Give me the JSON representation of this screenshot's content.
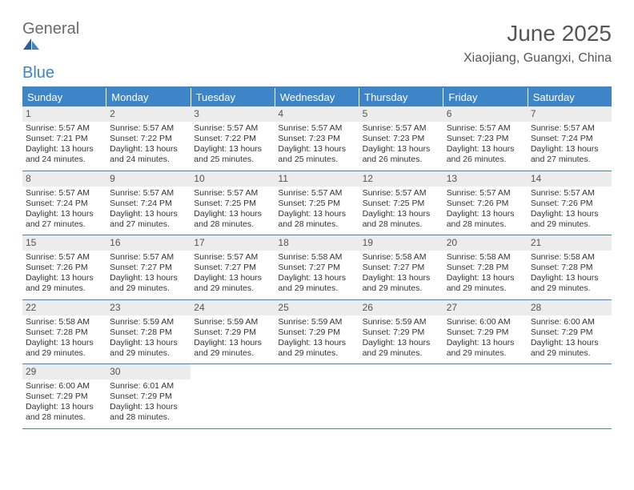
{
  "logo": {
    "part1": "General",
    "part2": "Blue"
  },
  "title": "June 2025",
  "location": "Xiaojiang, Guangxi, China",
  "colors": {
    "accent": "#3d85c6",
    "header_text": "#ffffff",
    "daynum_bg": "#ececec",
    "text": "#333333",
    "muted": "#555555"
  },
  "typography": {
    "title_fontsize": 28,
    "location_fontsize": 16,
    "header_fontsize": 13,
    "daynum_fontsize": 12,
    "body_fontsize": 10.5
  },
  "weekday_labels": [
    "Sunday",
    "Monday",
    "Tuesday",
    "Wednesday",
    "Thursday",
    "Friday",
    "Saturday"
  ],
  "days": [
    {
      "n": "1",
      "sunrise": "Sunrise: 5:57 AM",
      "sunset": "Sunset: 7:21 PM",
      "daylight": "Daylight: 13 hours and 24 minutes."
    },
    {
      "n": "2",
      "sunrise": "Sunrise: 5:57 AM",
      "sunset": "Sunset: 7:22 PM",
      "daylight": "Daylight: 13 hours and 24 minutes."
    },
    {
      "n": "3",
      "sunrise": "Sunrise: 5:57 AM",
      "sunset": "Sunset: 7:22 PM",
      "daylight": "Daylight: 13 hours and 25 minutes."
    },
    {
      "n": "4",
      "sunrise": "Sunrise: 5:57 AM",
      "sunset": "Sunset: 7:23 PM",
      "daylight": "Daylight: 13 hours and 25 minutes."
    },
    {
      "n": "5",
      "sunrise": "Sunrise: 5:57 AM",
      "sunset": "Sunset: 7:23 PM",
      "daylight": "Daylight: 13 hours and 26 minutes."
    },
    {
      "n": "6",
      "sunrise": "Sunrise: 5:57 AM",
      "sunset": "Sunset: 7:23 PM",
      "daylight": "Daylight: 13 hours and 26 minutes."
    },
    {
      "n": "7",
      "sunrise": "Sunrise: 5:57 AM",
      "sunset": "Sunset: 7:24 PM",
      "daylight": "Daylight: 13 hours and 27 minutes."
    },
    {
      "n": "8",
      "sunrise": "Sunrise: 5:57 AM",
      "sunset": "Sunset: 7:24 PM",
      "daylight": "Daylight: 13 hours and 27 minutes."
    },
    {
      "n": "9",
      "sunrise": "Sunrise: 5:57 AM",
      "sunset": "Sunset: 7:24 PM",
      "daylight": "Daylight: 13 hours and 27 minutes."
    },
    {
      "n": "10",
      "sunrise": "Sunrise: 5:57 AM",
      "sunset": "Sunset: 7:25 PM",
      "daylight": "Daylight: 13 hours and 28 minutes."
    },
    {
      "n": "11",
      "sunrise": "Sunrise: 5:57 AM",
      "sunset": "Sunset: 7:25 PM",
      "daylight": "Daylight: 13 hours and 28 minutes."
    },
    {
      "n": "12",
      "sunrise": "Sunrise: 5:57 AM",
      "sunset": "Sunset: 7:25 PM",
      "daylight": "Daylight: 13 hours and 28 minutes."
    },
    {
      "n": "13",
      "sunrise": "Sunrise: 5:57 AM",
      "sunset": "Sunset: 7:26 PM",
      "daylight": "Daylight: 13 hours and 28 minutes."
    },
    {
      "n": "14",
      "sunrise": "Sunrise: 5:57 AM",
      "sunset": "Sunset: 7:26 PM",
      "daylight": "Daylight: 13 hours and 29 minutes."
    },
    {
      "n": "15",
      "sunrise": "Sunrise: 5:57 AM",
      "sunset": "Sunset: 7:26 PM",
      "daylight": "Daylight: 13 hours and 29 minutes."
    },
    {
      "n": "16",
      "sunrise": "Sunrise: 5:57 AM",
      "sunset": "Sunset: 7:27 PM",
      "daylight": "Daylight: 13 hours and 29 minutes."
    },
    {
      "n": "17",
      "sunrise": "Sunrise: 5:57 AM",
      "sunset": "Sunset: 7:27 PM",
      "daylight": "Daylight: 13 hours and 29 minutes."
    },
    {
      "n": "18",
      "sunrise": "Sunrise: 5:58 AM",
      "sunset": "Sunset: 7:27 PM",
      "daylight": "Daylight: 13 hours and 29 minutes."
    },
    {
      "n": "19",
      "sunrise": "Sunrise: 5:58 AM",
      "sunset": "Sunset: 7:27 PM",
      "daylight": "Daylight: 13 hours and 29 minutes."
    },
    {
      "n": "20",
      "sunrise": "Sunrise: 5:58 AM",
      "sunset": "Sunset: 7:28 PM",
      "daylight": "Daylight: 13 hours and 29 minutes."
    },
    {
      "n": "21",
      "sunrise": "Sunrise: 5:58 AM",
      "sunset": "Sunset: 7:28 PM",
      "daylight": "Daylight: 13 hours and 29 minutes."
    },
    {
      "n": "22",
      "sunrise": "Sunrise: 5:58 AM",
      "sunset": "Sunset: 7:28 PM",
      "daylight": "Daylight: 13 hours and 29 minutes."
    },
    {
      "n": "23",
      "sunrise": "Sunrise: 5:59 AM",
      "sunset": "Sunset: 7:28 PM",
      "daylight": "Daylight: 13 hours and 29 minutes."
    },
    {
      "n": "24",
      "sunrise": "Sunrise: 5:59 AM",
      "sunset": "Sunset: 7:29 PM",
      "daylight": "Daylight: 13 hours and 29 minutes."
    },
    {
      "n": "25",
      "sunrise": "Sunrise: 5:59 AM",
      "sunset": "Sunset: 7:29 PM",
      "daylight": "Daylight: 13 hours and 29 minutes."
    },
    {
      "n": "26",
      "sunrise": "Sunrise: 5:59 AM",
      "sunset": "Sunset: 7:29 PM",
      "daylight": "Daylight: 13 hours and 29 minutes."
    },
    {
      "n": "27",
      "sunrise": "Sunrise: 6:00 AM",
      "sunset": "Sunset: 7:29 PM",
      "daylight": "Daylight: 13 hours and 29 minutes."
    },
    {
      "n": "28",
      "sunrise": "Sunrise: 6:00 AM",
      "sunset": "Sunset: 7:29 PM",
      "daylight": "Daylight: 13 hours and 29 minutes."
    },
    {
      "n": "29",
      "sunrise": "Sunrise: 6:00 AM",
      "sunset": "Sunset: 7:29 PM",
      "daylight": "Daylight: 13 hours and 28 minutes."
    },
    {
      "n": "30",
      "sunrise": "Sunrise: 6:01 AM",
      "sunset": "Sunset: 7:29 PM",
      "daylight": "Daylight: 13 hours and 28 minutes."
    }
  ]
}
